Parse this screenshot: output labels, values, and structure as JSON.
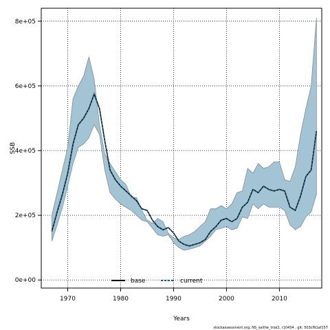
{
  "chart_data": {
    "type": "line",
    "xlabel": "Years",
    "ylabel": "SSB",
    "xlim": [
      1965,
      2018
    ],
    "ylim": [
      -25000,
      840000
    ],
    "xticks": [
      1970,
      1980,
      1990,
      2000,
      2010
    ],
    "xtick_labels": [
      "1970",
      "1980",
      "1990",
      "2000",
      "2010"
    ],
    "yticks": [
      0,
      200000,
      400000,
      600000,
      800000
    ],
    "ytick_labels": [
      "0e+00",
      "2e+05",
      "4e+05",
      "6e+05",
      "8e+05"
    ],
    "grid": true,
    "legend_position": "bottom-center",
    "colors": {
      "band": "#a3c4d5",
      "band_edge": "#7f8c93",
      "base": "#000000",
      "current": "#1a5a7a"
    },
    "x": [
      1967,
      1968,
      1969,
      1970,
      1971,
      1972,
      1973,
      1974,
      1975,
      1976,
      1977,
      1978,
      1979,
      1980,
      1981,
      1982,
      1983,
      1984,
      1985,
      1986,
      1987,
      1988,
      1989,
      1990,
      1991,
      1992,
      1993,
      1994,
      1995,
      1996,
      1997,
      1998,
      1999,
      2000,
      2001,
      2002,
      2003,
      2004,
      2005,
      2006,
      2007,
      2008,
      2009,
      2010,
      2011,
      2012,
      2013,
      2014,
      2015,
      2016,
      2017
    ],
    "series": [
      {
        "name": "base",
        "values": [
          150000,
          210000,
          265000,
          330000,
          420000,
          480000,
          500000,
          530000,
          575000,
          530000,
          430000,
          340000,
          310000,
          290000,
          275000,
          260000,
          245000,
          220000,
          215000,
          185000,
          165000,
          155000,
          162000,
          145000,
          120000,
          110000,
          105000,
          110000,
          115000,
          125000,
          150000,
          165000,
          185000,
          190000,
          180000,
          190000,
          225000,
          240000,
          280000,
          270000,
          290000,
          280000,
          275000,
          280000,
          275000,
          225000,
          215000,
          260000,
          320000,
          340000,
          460000
        ]
      },
      {
        "name": "current",
        "values": [
          150000,
          210000,
          265000,
          330000,
          420000,
          480000,
          500000,
          530000,
          575000,
          530000,
          430000,
          340000,
          310000,
          290000,
          275000,
          260000,
          245000,
          220000,
          215000,
          185000,
          165000,
          155000,
          162000,
          145000,
          120000,
          110000,
          105000,
          110000,
          115000,
          125000,
          150000,
          165000,
          185000,
          190000,
          180000,
          190000,
          225000,
          240000,
          280000,
          270000,
          290000,
          280000,
          275000,
          280000,
          275000,
          225000,
          215000,
          260000,
          320000,
          340000,
          460000
        ]
      }
    ],
    "ci_upper": [
      200000,
      270000,
      340000,
      410000,
      560000,
      600000,
      630000,
      690000,
      620000,
      480000,
      390000,
      360000,
      335000,
      310000,
      295000,
      255000,
      255000,
      215000,
      185000,
      175000,
      190000,
      180000,
      145000,
      130000,
      125000,
      135000,
      140000,
      150000,
      165000,
      180000,
      220000,
      220000,
      230000,
      220000,
      235000,
      270000,
      275000,
      345000,
      330000,
      360000,
      345000,
      350000,
      365000,
      365000,
      310000,
      305000,
      350000,
      450000,
      530000,
      600000,
      810000
    ],
    "ci_lower": [
      120000,
      170000,
      225000,
      290000,
      360000,
      410000,
      420000,
      440000,
      480000,
      450000,
      340000,
      270000,
      250000,
      235000,
      225000,
      215000,
      200000,
      185000,
      180000,
      160000,
      140000,
      135000,
      140000,
      115000,
      100000,
      92000,
      95000,
      100000,
      105000,
      120000,
      135000,
      155000,
      160000,
      165000,
      155000,
      160000,
      195000,
      190000,
      235000,
      220000,
      235000,
      225000,
      225000,
      225000,
      215000,
      170000,
      155000,
      165000,
      195000,
      210000,
      265000
    ],
    "footer": "stockassessment.org, NS_saithe_trial2, r10434 , git: 503cf91af157"
  }
}
